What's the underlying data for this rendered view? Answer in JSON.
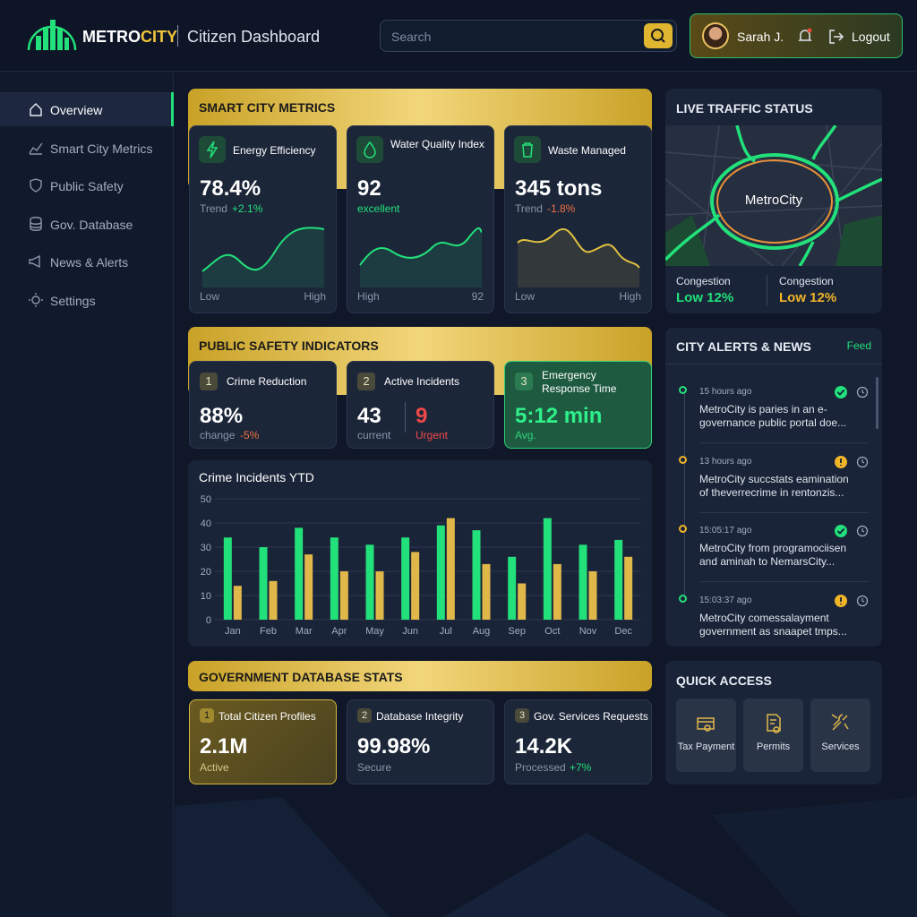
{
  "header": {
    "logo_a": "METRO",
    "logo_b": "CITY",
    "subtitle": "Citizen Dashboard",
    "search_placeholder": "Search",
    "user": "Sarah J.",
    "logout": "Logout"
  },
  "nav": [
    "Overview",
    "Smart City Metrics",
    "Public Safety",
    "Gov. Database",
    "News & Alerts",
    "Settings"
  ],
  "metrics": {
    "title": "SMART CITY METRICS",
    "cards": [
      {
        "label": "Energy Efficiency",
        "value": "78.4%",
        "sub": "Trend",
        "delta": "+2.1%",
        "low": "Low",
        "high": "High"
      },
      {
        "label": "Water Quality Index",
        "value": "92",
        "sub": "excellent",
        "low": "High",
        "high": "92"
      },
      {
        "label": "Waste Managed",
        "value": "345 tons",
        "sub": "Trend",
        "delta": "-1.8%",
        "low": "Low",
        "high": "High"
      }
    ]
  },
  "traffic": {
    "title": "LIVE TRAFFIC STATUS",
    "map_label": "MetroCity",
    "stats": [
      {
        "label": "Congestion",
        "value": "Low 12%",
        "color": "#22e07a"
      },
      {
        "label": "Congestion",
        "value": "Low 12%",
        "color": "#f0b429"
      }
    ]
  },
  "safety": {
    "title": "PUBLIC SAFETY INDICATORS",
    "cards": [
      {
        "num": "1",
        "label": "Crime Reduction",
        "value": "88%",
        "sub": "change",
        "delta": "-5%"
      },
      {
        "num": "2",
        "label": "Active Incidents",
        "value": "43",
        "sub": "current",
        "value2": "9",
        "sub2": "Urgent"
      },
      {
        "num": "3",
        "label": "Emergency Response Time",
        "value": "5:12 min",
        "sub": "Avg."
      }
    ]
  },
  "crime_chart": {
    "type": "bar",
    "title": "Crime Incidents YTD",
    "categories": [
      "Jan",
      "Feb",
      "Mar",
      "Apr",
      "May",
      "Jun",
      "Jul",
      "Aug",
      "Sep",
      "Oct",
      "Nov",
      "Dec"
    ],
    "series": [
      {
        "color": "#22e07a",
        "values": [
          34,
          30,
          38,
          34,
          31,
          34,
          39,
          37,
          26,
          42,
          31,
          33
        ]
      },
      {
        "color": "#e0b84a",
        "values": [
          14,
          16,
          27,
          20,
          20,
          28,
          42,
          23,
          15,
          23,
          20,
          26
        ]
      }
    ],
    "ylim": [
      0,
      50
    ],
    "yticks": [
      0,
      10,
      20,
      30,
      40,
      50
    ],
    "grid": true
  },
  "alerts": {
    "title": "CITY ALERTS & NEWS",
    "feed": "Feed",
    "items": [
      {
        "time": "15 hours ago",
        "text": "MetroCity is paries in an e-governance public portal doe...",
        "color": "#22e07a",
        "badge_color": "#22e07a"
      },
      {
        "time": "13 hours ago",
        "text": "MetroCity succstats eamination of theverrecrime in rentonzis...",
        "color": "#f0b429",
        "badge_color": "#f0b429"
      },
      {
        "time": "15:05:17 ago",
        "text": "MetroCity from programociisen and aminah to NemarsCity...",
        "color": "#f0b429",
        "badge_color": "#22e07a"
      },
      {
        "time": "15:03:37 ago",
        "text": "MetroCity comessalayment government as snaapet tmps...",
        "color": "#22e07a",
        "badge_color": "#f0b429"
      }
    ]
  },
  "gov": {
    "title": "GOVERNMENT DATABASE STATS",
    "cards": [
      {
        "num": "1",
        "label": "Total Citizen Profiles",
        "value": "2.1M",
        "sub": "Active"
      },
      {
        "num": "2",
        "label": "Database Integrity",
        "value": "99.98%",
        "sub": "Secure"
      },
      {
        "num": "3",
        "label": "Gov. Services Requests",
        "value": "14.2K",
        "sub": "Processed",
        "delta": "+7%"
      }
    ]
  },
  "quick": {
    "title": "QUICK ACCESS",
    "items": [
      "Tax Payment",
      "Permits",
      "Services"
    ]
  }
}
